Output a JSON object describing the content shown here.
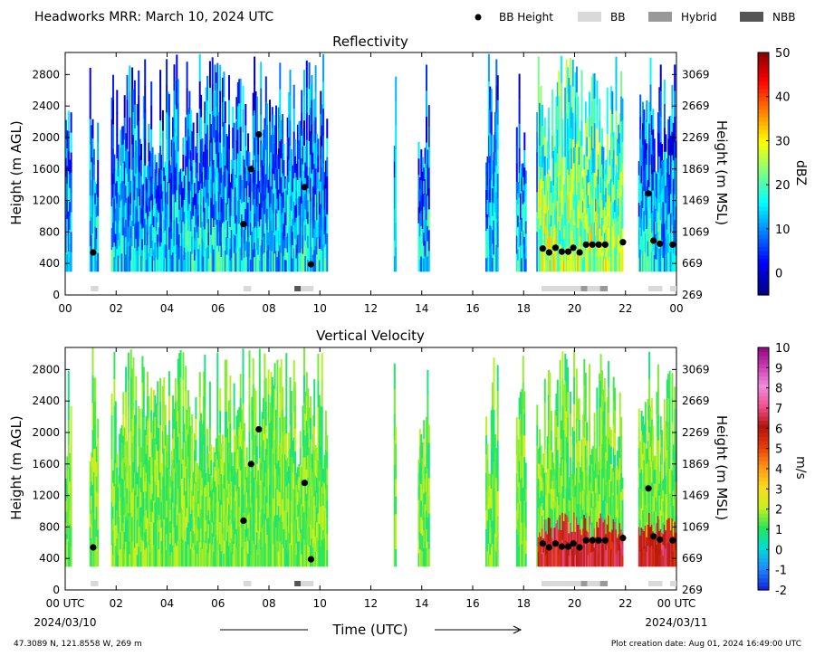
{
  "header": {
    "title": "Headworks MRR:  March 10, 2024 UTC",
    "legend": [
      {
        "label": "BB Height",
        "kind": "dot",
        "color": "#000000"
      },
      {
        "label": "BB",
        "kind": "swatch",
        "color": "#d9d9d9"
      },
      {
        "label": "Hybrid",
        "kind": "swatch",
        "color": "#999999"
      },
      {
        "label": "NBB",
        "kind": "swatch",
        "color": "#555555"
      }
    ]
  },
  "footer": {
    "xlabel": "Time (UTC)",
    "start_date": "2024/03/10",
    "end_date": "2024/03/11",
    "location": "47.3089 N, 121.8558 W, 269 m",
    "creation": "Plot creation date: Aug 01, 2024 16:49:00 UTC"
  },
  "chart_data": [
    {
      "type": "heatmap",
      "title": "Reflectivity",
      "ylabel": "Height (m AGL)",
      "y2label": "Height (m MSL)",
      "xlim": [
        0,
        24
      ],
      "ylim": [
        0,
        3080
      ],
      "x_ticks": [
        "00",
        "02",
        "04",
        "06",
        "08",
        "10",
        "12",
        "14",
        "16",
        "18",
        "20",
        "22",
        "00"
      ],
      "y_ticks": [
        0,
        400,
        800,
        1200,
        1600,
        2000,
        2400,
        2800
      ],
      "y2_ticks": [
        269,
        669,
        1069,
        1469,
        1869,
        2269,
        2669,
        3069
      ],
      "colorbar": {
        "label": "dBZ",
        "range": [
          -5,
          50
        ],
        "ticks": [
          0,
          10,
          20,
          30,
          40,
          50
        ]
      },
      "bb_height_points": [
        {
          "x": 1.1,
          "y": 540
        },
        {
          "x": 7.0,
          "y": 900
        },
        {
          "x": 7.3,
          "y": 1600
        },
        {
          "x": 7.6,
          "y": 2040
        },
        {
          "x": 9.4,
          "y": 1370
        },
        {
          "x": 9.65,
          "y": 390
        },
        {
          "x": 18.75,
          "y": 590
        },
        {
          "x": 19.0,
          "y": 540
        },
        {
          "x": 19.25,
          "y": 600
        },
        {
          "x": 19.5,
          "y": 550
        },
        {
          "x": 19.75,
          "y": 550
        },
        {
          "x": 19.95,
          "y": 600
        },
        {
          "x": 20.2,
          "y": 540
        },
        {
          "x": 20.45,
          "y": 640
        },
        {
          "x": 20.7,
          "y": 640
        },
        {
          "x": 20.95,
          "y": 640
        },
        {
          "x": 21.2,
          "y": 640
        },
        {
          "x": 21.9,
          "y": 670
        },
        {
          "x": 22.9,
          "y": 1290
        },
        {
          "x": 23.1,
          "y": 690
        },
        {
          "x": 23.35,
          "y": 650
        },
        {
          "x": 23.85,
          "y": 640
        }
      ],
      "bb_type_segments": [
        {
          "start": 1.0,
          "end": 1.3,
          "type": "BB"
        },
        {
          "start": 7.0,
          "end": 7.3,
          "type": "BB"
        },
        {
          "start": 9.0,
          "end": 9.25,
          "type": "NBB"
        },
        {
          "start": 9.25,
          "end": 9.75,
          "type": "BB"
        },
        {
          "start": 18.7,
          "end": 20.25,
          "type": "BB"
        },
        {
          "start": 20.25,
          "end": 20.5,
          "type": "Hybrid"
        },
        {
          "start": 20.5,
          "end": 21.0,
          "type": "BB"
        },
        {
          "start": 21.0,
          "end": 21.3,
          "type": "Hybrid"
        },
        {
          "start": 22.9,
          "end": 23.45,
          "type": "BB"
        },
        {
          "start": 23.75,
          "end": 24.0,
          "type": "BB"
        }
      ]
    },
    {
      "type": "heatmap",
      "title": "Vertical Velocity",
      "ylabel": "Height (m AGL)",
      "y2label": "Height (m MSL)",
      "xlim": [
        0,
        24
      ],
      "ylim": [
        0,
        3080
      ],
      "x_ticks": [
        "00 UTC",
        "02",
        "04",
        "06",
        "08",
        "10",
        "12",
        "14",
        "16",
        "18",
        "20",
        "22",
        "00 UTC"
      ],
      "y_ticks": [
        0,
        400,
        800,
        1200,
        1600,
        2000,
        2400,
        2800
      ],
      "y2_ticks": [
        269,
        669,
        1069,
        1469,
        1869,
        2269,
        2669,
        3069
      ],
      "colorbar": {
        "label": "m/s",
        "range": [
          -2,
          10
        ],
        "ticks": [
          -2,
          -1,
          0,
          1,
          2,
          3,
          4,
          5,
          6,
          7,
          8,
          9,
          10
        ]
      },
      "bb_height_points": [
        {
          "x": 1.1,
          "y": 540
        },
        {
          "x": 7.0,
          "y": 880
        },
        {
          "x": 7.3,
          "y": 1600
        },
        {
          "x": 7.6,
          "y": 2040
        },
        {
          "x": 9.4,
          "y": 1360
        },
        {
          "x": 9.65,
          "y": 390
        },
        {
          "x": 18.75,
          "y": 590
        },
        {
          "x": 19.0,
          "y": 540
        },
        {
          "x": 19.25,
          "y": 590
        },
        {
          "x": 19.5,
          "y": 550
        },
        {
          "x": 19.75,
          "y": 550
        },
        {
          "x": 19.95,
          "y": 590
        },
        {
          "x": 20.2,
          "y": 540
        },
        {
          "x": 20.45,
          "y": 630
        },
        {
          "x": 20.7,
          "y": 630
        },
        {
          "x": 20.95,
          "y": 630
        },
        {
          "x": 21.2,
          "y": 630
        },
        {
          "x": 21.9,
          "y": 660
        },
        {
          "x": 22.9,
          "y": 1290
        },
        {
          "x": 23.1,
          "y": 680
        },
        {
          "x": 23.35,
          "y": 640
        },
        {
          "x": 23.85,
          "y": 630
        }
      ],
      "bb_type_segments": [
        {
          "start": 1.0,
          "end": 1.3,
          "type": "BB"
        },
        {
          "start": 7.0,
          "end": 7.3,
          "type": "BB"
        },
        {
          "start": 9.0,
          "end": 9.25,
          "type": "NBB"
        },
        {
          "start": 9.25,
          "end": 9.75,
          "type": "BB"
        },
        {
          "start": 18.7,
          "end": 20.25,
          "type": "BB"
        },
        {
          "start": 20.25,
          "end": 20.5,
          "type": "Hybrid"
        },
        {
          "start": 20.5,
          "end": 21.0,
          "type": "BB"
        },
        {
          "start": 21.0,
          "end": 21.3,
          "type": "Hybrid"
        },
        {
          "start": 22.9,
          "end": 23.45,
          "type": "BB"
        },
        {
          "start": 23.75,
          "end": 24.0,
          "type": "BB"
        }
      ]
    }
  ]
}
